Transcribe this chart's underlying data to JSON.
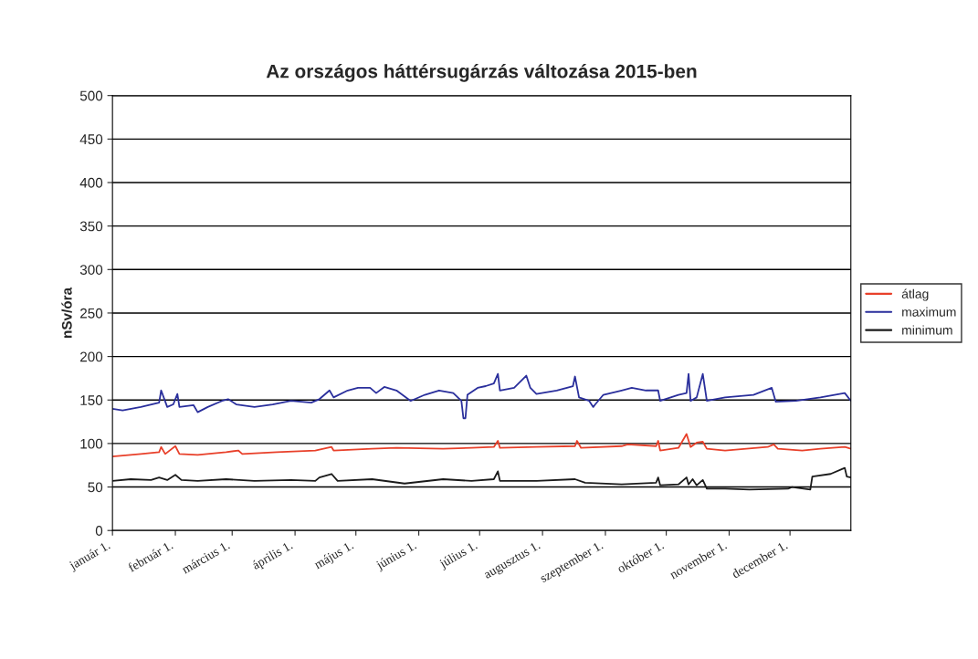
{
  "chart_data": {
    "type": "line",
    "title": "Az országos háttérsugárzás változása 2015-ben",
    "ylabel": "nSv/óra",
    "xlim": [
      "2015-01-01",
      "2015-12-31"
    ],
    "xticks": [
      {
        "value": "2015-01-01",
        "label": "január 1."
      },
      {
        "value": "2015-02-01",
        "label": "február 1."
      },
      {
        "value": "2015-03-01",
        "label": "március 1."
      },
      {
        "value": "2015-04-01",
        "label": "április 1."
      },
      {
        "value": "2015-05-01",
        "label": "május 1."
      },
      {
        "value": "2015-06-01",
        "label": "június 1."
      },
      {
        "value": "2015-07-01",
        "label": "július 1."
      },
      {
        "value": "2015-08-01",
        "label": "augusztus 1."
      },
      {
        "value": "2015-09-01",
        "label": "szeptember 1."
      },
      {
        "value": "2015-10-01",
        "label": "október 1."
      },
      {
        "value": "2015-11-01",
        "label": "november 1."
      },
      {
        "value": "2015-12-01",
        "label": "december 1."
      }
    ],
    "ylim": [
      0,
      500
    ],
    "yticks": [
      0,
      50,
      100,
      150,
      200,
      250,
      300,
      350,
      400,
      450,
      500
    ],
    "grid": "y",
    "legend": "right",
    "marker": "none",
    "line_style": "solid",
    "series": [
      {
        "name": "átlag",
        "color": "#e8402a",
        "x": [
          "2015-01-01",
          "2015-01-15",
          "2015-01-24",
          "2015-01-25",
          "2015-01-27",
          "2015-02-01",
          "2015-02-03",
          "2015-02-12",
          "2015-02-26",
          "2015-03-04",
          "2015-03-06",
          "2015-03-23",
          "2015-04-11",
          "2015-04-19",
          "2015-04-20",
          "2015-05-09",
          "2015-05-21",
          "2015-06-13",
          "2015-06-27",
          "2015-07-08",
          "2015-07-10",
          "2015-07-11",
          "2015-07-29",
          "2015-08-17",
          "2015-08-18",
          "2015-08-20",
          "2015-09-09",
          "2015-09-12",
          "2015-09-26",
          "2015-09-27",
          "2015-09-28",
          "2015-10-07",
          "2015-10-11",
          "2015-10-13",
          "2015-10-16",
          "2015-10-19",
          "2015-10-21",
          "2015-10-30",
          "2015-11-20",
          "2015-11-23",
          "2015-11-25",
          "2015-12-07",
          "2015-12-16",
          "2015-12-28",
          "2015-12-31"
        ],
        "values": [
          85,
          88,
          90,
          96,
          88,
          97,
          88,
          87,
          90,
          92,
          88,
          90,
          92,
          96,
          92,
          94,
          95,
          94,
          95,
          96,
          103,
          95,
          96,
          97,
          103,
          95,
          97,
          99,
          97,
          103,
          92,
          95,
          111,
          96,
          101,
          102,
          94,
          92,
          96,
          99,
          94,
          92,
          94,
          96,
          94
        ]
      },
      {
        "name": "maximum",
        "color": "#2a2f9c",
        "x": [
          "2015-01-01",
          "2015-01-06",
          "2015-01-15",
          "2015-01-24",
          "2015-01-25",
          "2015-01-28",
          "2015-01-31",
          "2015-02-02",
          "2015-02-03",
          "2015-02-10",
          "2015-02-12",
          "2015-02-17",
          "2015-02-24",
          "2015-02-27",
          "2015-03-03",
          "2015-03-12",
          "2015-03-21",
          "2015-03-30",
          "2015-04-09",
          "2015-04-13",
          "2015-04-18",
          "2015-04-20",
          "2015-04-27",
          "2015-05-02",
          "2015-05-08",
          "2015-05-11",
          "2015-05-15",
          "2015-05-21",
          "2015-05-28",
          "2015-06-04",
          "2015-06-11",
          "2015-06-18",
          "2015-06-22",
          "2015-06-23",
          "2015-06-24",
          "2015-06-25",
          "2015-06-30",
          "2015-07-04",
          "2015-07-08",
          "2015-07-10",
          "2015-07-11",
          "2015-07-18",
          "2015-07-24",
          "2015-07-26",
          "2015-07-29",
          "2015-08-08",
          "2015-08-16",
          "2015-08-17",
          "2015-08-19",
          "2015-08-24",
          "2015-08-26",
          "2015-08-27",
          "2015-08-31",
          "2015-09-09",
          "2015-09-14",
          "2015-09-21",
          "2015-09-27",
          "2015-09-28",
          "2015-10-07",
          "2015-10-11",
          "2015-10-12",
          "2015-10-13",
          "2015-10-16",
          "2015-10-19",
          "2015-10-21",
          "2015-10-30",
          "2015-11-13",
          "2015-11-22",
          "2015-11-24",
          "2015-12-04",
          "2015-12-16",
          "2015-12-28",
          "2015-12-31"
        ],
        "values": [
          140,
          138,
          142,
          147,
          161,
          142,
          145,
          157,
          142,
          144,
          136,
          142,
          149,
          151,
          145,
          142,
          145,
          149,
          147,
          151,
          161,
          153,
          161,
          164,
          164,
          158,
          165,
          161,
          149,
          156,
          161,
          158,
          149,
          129,
          129,
          156,
          164,
          166,
          169,
          180,
          161,
          164,
          178,
          164,
          157,
          161,
          166,
          177,
          153,
          149,
          142,
          145,
          156,
          161,
          164,
          161,
          161,
          149,
          156,
          158,
          180,
          149,
          153,
          180,
          149,
          153,
          156,
          164,
          148,
          149,
          153,
          158,
          149
        ]
      },
      {
        "name": "minimum",
        "color": "#1a1a1a",
        "x": [
          "2015-01-01",
          "2015-01-10",
          "2015-01-20",
          "2015-01-24",
          "2015-01-28",
          "2015-02-01",
          "2015-02-04",
          "2015-02-12",
          "2015-02-26",
          "2015-03-12",
          "2015-03-30",
          "2015-04-11",
          "2015-04-13",
          "2015-04-19",
          "2015-04-22",
          "2015-05-09",
          "2015-05-25",
          "2015-06-13",
          "2015-06-27",
          "2015-07-08",
          "2015-07-10",
          "2015-07-11",
          "2015-07-29",
          "2015-08-17",
          "2015-08-22",
          "2015-09-09",
          "2015-09-26",
          "2015-09-27",
          "2015-09-28",
          "2015-10-07",
          "2015-10-11",
          "2015-10-12",
          "2015-10-14",
          "2015-10-16",
          "2015-10-19",
          "2015-10-21",
          "2015-10-30",
          "2015-11-11",
          "2015-11-30",
          "2015-12-02",
          "2015-12-11",
          "2015-12-12",
          "2015-12-21",
          "2015-12-28",
          "2015-12-29",
          "2015-12-31"
        ],
        "values": [
          57,
          59,
          58,
          61,
          58,
          64,
          58,
          57,
          59,
          57,
          58,
          57,
          61,
          65,
          57,
          59,
          54,
          59,
          57,
          59,
          68,
          57,
          57,
          59,
          55,
          53,
          55,
          61,
          52,
          53,
          61,
          53,
          59,
          52,
          58,
          48,
          48,
          47,
          48,
          50,
          47,
          62,
          65,
          72,
          62,
          61
        ]
      }
    ]
  }
}
